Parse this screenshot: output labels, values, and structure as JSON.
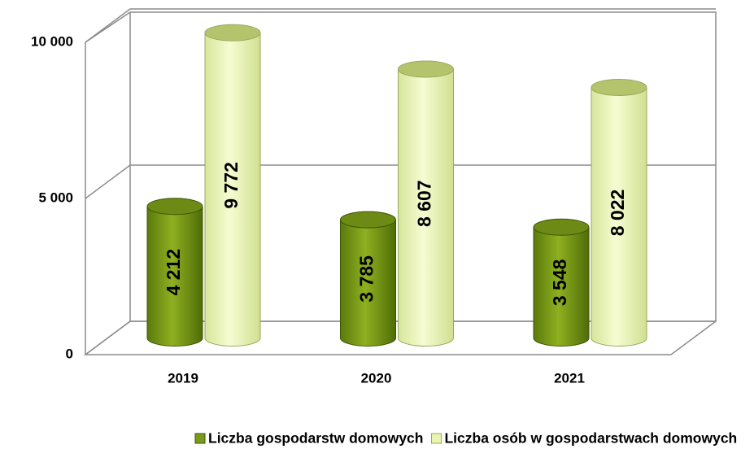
{
  "chart_data": {
    "type": "bar3d",
    "categories": [
      "2019",
      "2020",
      "2021"
    ],
    "series": [
      {
        "name": "Liczba gospodarstw domowych",
        "color": "#7a9a1a",
        "values": [
          4212,
          3785,
          3548
        ],
        "value_labels": [
          "4 212",
          "3 785",
          "3 548"
        ]
      },
      {
        "name": "Liczba osób w gospodarstwach domowych",
        "color": "#e8f4b0",
        "values": [
          9772,
          8607,
          8022
        ],
        "value_labels": [
          "9 772",
          "8 607",
          "8 022"
        ]
      }
    ],
    "ylim": [
      0,
      10000
    ],
    "yticks": [
      0,
      {
        "value": 5000,
        "label": "5 000"
      },
      {
        "value": 10000,
        "label": "10 000"
      }
    ],
    "grid": true,
    "legend": "bottom"
  }
}
